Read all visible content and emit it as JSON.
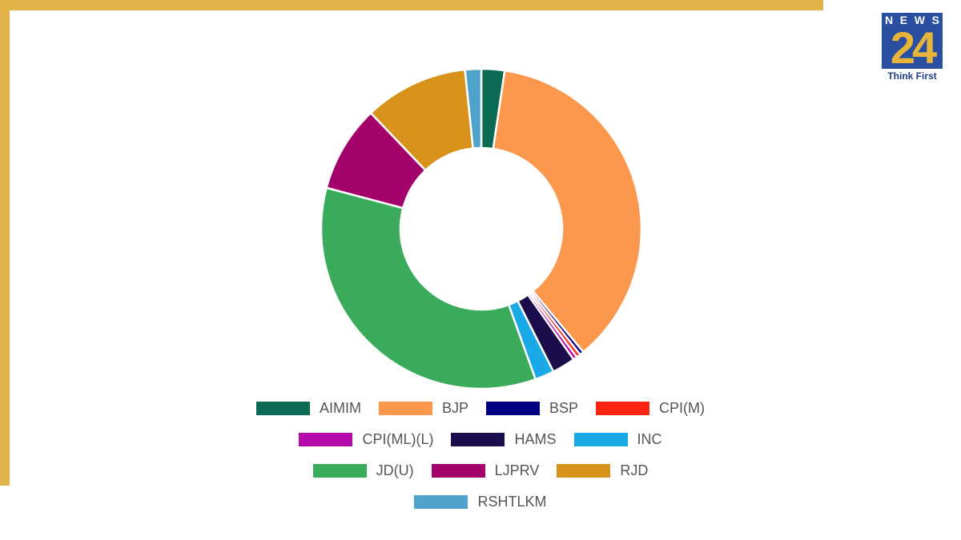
{
  "brand": {
    "logo_top": [
      "N",
      "E",
      "W",
      "S"
    ],
    "logo_number": "24",
    "tagline": "Think First",
    "accent_color": "#e2b349",
    "logo_blue": "#2a4ea0"
  },
  "chart_data": {
    "type": "pie",
    "donut": true,
    "legend_position": "bottom",
    "slices": [
      {
        "label": "AIMIM",
        "value": 2.3,
        "color": "#0b6b52"
      },
      {
        "label": "BJP",
        "value": 36.0,
        "color": "#fb984e"
      },
      {
        "label": "BSP",
        "value": 0.4,
        "color": "#020080"
      },
      {
        "label": "CPI(M)",
        "value": 0.4,
        "color": "#fe2412"
      },
      {
        "label": "CPI(ML)(L)",
        "value": 0.4,
        "color": "#b40aac"
      },
      {
        "label": "HAMS",
        "value": 2.3,
        "color": "#1b0d4b"
      },
      {
        "label": "INC",
        "value": 1.9,
        "color": "#1aa9e7"
      },
      {
        "label": "JD(U)",
        "value": 34.0,
        "color": "#3aab5b"
      },
      {
        "label": "LJPRV",
        "value": 8.6,
        "color": "#a3026b"
      },
      {
        "label": "RJD",
        "value": 10.3,
        "color": "#d7921b"
      },
      {
        "label": "RSHTLKM",
        "value": 1.6,
        "color": "#4fa3ca"
      }
    ]
  }
}
